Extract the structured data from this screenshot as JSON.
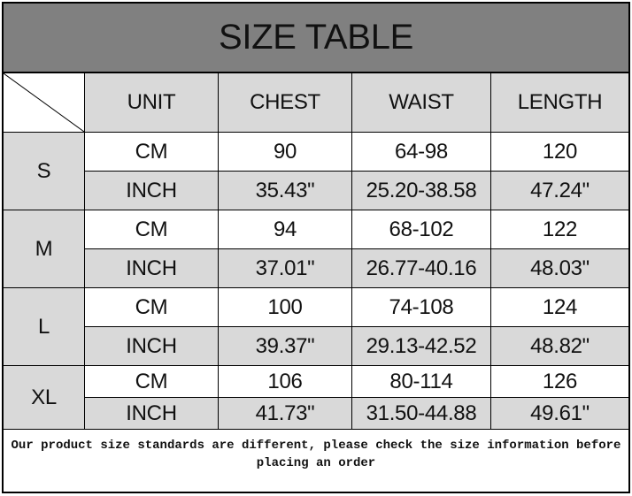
{
  "title": "SIZE TABLE",
  "headers": [
    "UNIT",
    "CHEST",
    "WAIST",
    "LENGTH"
  ],
  "colors": {
    "title_bg": "#808080",
    "header_bg": "#d9d9d9",
    "alt_row_bg": "#d9d9d9"
  },
  "sizes": [
    {
      "size": "S",
      "rows": [
        [
          "CM",
          "90",
          "64-98",
          "120"
        ],
        [
          "INCH",
          "35.43\"",
          "25.20-38.58",
          "47.24\""
        ]
      ]
    },
    {
      "size": "M",
      "rows": [
        [
          "CM",
          "94",
          "68-102",
          "122"
        ],
        [
          "INCH",
          "37.01\"",
          "26.77-40.16",
          "48.03\""
        ]
      ]
    },
    {
      "size": "L",
      "rows": [
        [
          "CM",
          "100",
          "74-108",
          "124"
        ],
        [
          "INCH",
          "39.37\"",
          "29.13-42.52",
          "48.82\""
        ]
      ]
    },
    {
      "size": "XL",
      "rows": [
        [
          "CM",
          "106",
          "80-114",
          "126"
        ],
        [
          "INCH",
          "41.73\"",
          "31.50-44.88",
          "49.61\""
        ]
      ]
    }
  ],
  "footer": "Our product size standards are different, please check the size information before placing an order"
}
